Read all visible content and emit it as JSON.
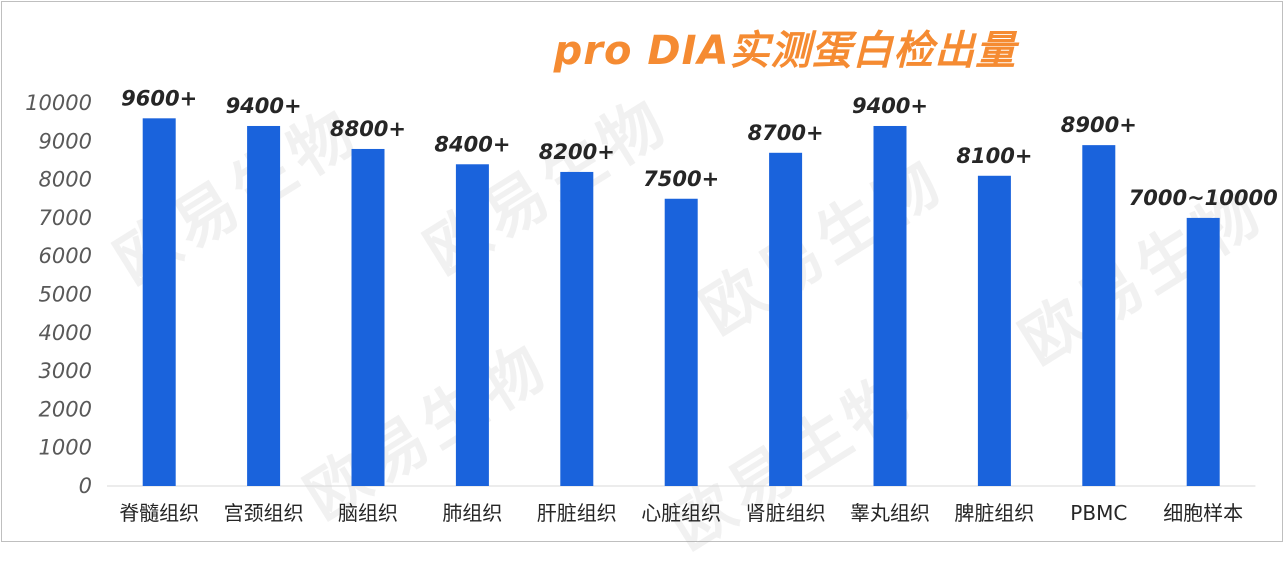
{
  "chart_data": {
    "type": "bar",
    "title": "pro DIA实测蛋白检出量",
    "categories": [
      "脊髓组织",
      "宫颈组织",
      "脑组织",
      "肺组织",
      "肝脏组织",
      "心脏组织",
      "肾脏组织",
      "睾丸组织",
      "脾脏组织",
      "PBMC",
      "细胞样本"
    ],
    "values": [
      9600,
      9400,
      8800,
      8400,
      8200,
      7500,
      8700,
      9400,
      8100,
      8900,
      7000
    ],
    "data_labels": [
      "9600+",
      "9400+",
      "8800+",
      "8400+",
      "8200+",
      "7500+",
      "8700+",
      "9400+",
      "8100+",
      "8900+",
      "7000~10000"
    ],
    "ylim": [
      0,
      10000
    ],
    "yticks": [
      0,
      1000,
      2000,
      3000,
      4000,
      5000,
      6000,
      7000,
      8000,
      9000,
      10000
    ],
    "xlabel": "",
    "ylabel": "",
    "grid": false,
    "legend": "none",
    "bar_color": "#1a63dc"
  },
  "watermark": "欧易生物"
}
